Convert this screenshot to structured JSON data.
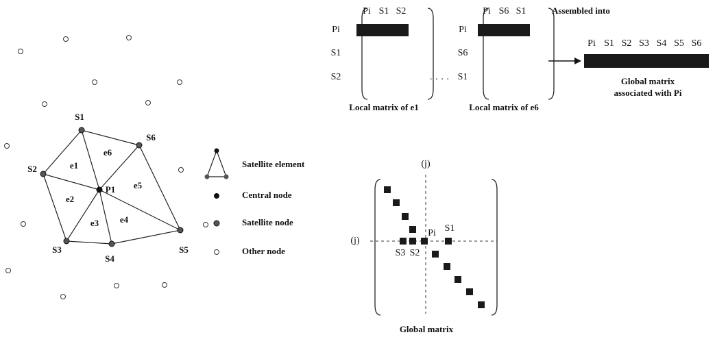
{
  "mesh": {
    "central": "P1",
    "satellites": [
      "S1",
      "S6",
      "S2",
      "S5",
      "S3",
      "S4"
    ],
    "elements": [
      "e1",
      "e6",
      "e5",
      "e4",
      "e3",
      "e2"
    ]
  },
  "legend": [
    "Satellite element",
    "Central node",
    "Satellite node",
    "Other node"
  ],
  "local_matrices": [
    {
      "columns": [
        "Pi",
        "S1",
        "S2"
      ],
      "rows": [
        "Pi",
        "S1",
        "S2"
      ],
      "caption": "Local matrix of e1"
    },
    {
      "columns": [
        "Pi",
        "S6",
        "S1"
      ],
      "rows": [
        "Pi",
        "S6",
        "S1"
      ],
      "caption": "Local matrix of e6"
    }
  ],
  "separator": "· · · ·",
  "assembly": {
    "label": "Assembled into",
    "columns": [
      "Pi",
      "S1",
      "S2",
      "S3",
      "S4",
      "S5",
      "S6"
    ],
    "caption": [
      "Global matrix",
      "associated with Pi"
    ]
  },
  "global_matrix": {
    "index_top": "(j)",
    "index_left": "(j)",
    "labels": [
      "Pi",
      "S1",
      "S3",
      "S2"
    ],
    "caption": "Global matrix"
  }
}
